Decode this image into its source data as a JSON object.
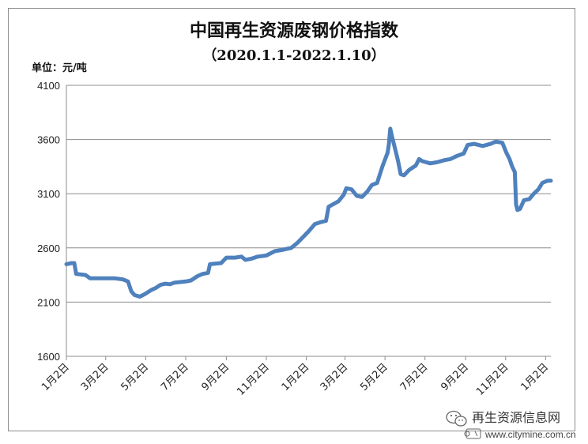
{
  "chart_data": {
    "type": "line",
    "title": "中国再生资源废钢价格指数",
    "subtitle": "（2020.1.1-2022.1.10）",
    "unit_label": "单位：元/吨",
    "xlabel": "",
    "ylabel": "",
    "ylim": [
      1600,
      4100
    ],
    "yticks": [
      1600,
      2100,
      2600,
      3100,
      3600,
      4100
    ],
    "xlim": [
      "2020-01-02",
      "2022-01-10"
    ],
    "xticks": [
      {
        "date": "2020-01-02",
        "label": "1月2日"
      },
      {
        "date": "2020-03-02",
        "label": "3月2日"
      },
      {
        "date": "2020-05-02",
        "label": "5月2日"
      },
      {
        "date": "2020-07-02",
        "label": "7月2日"
      },
      {
        "date": "2020-09-02",
        "label": "9月2日"
      },
      {
        "date": "2020-11-02",
        "label": "11月2日"
      },
      {
        "date": "2021-01-02",
        "label": "1月2日"
      },
      {
        "date": "2021-03-02",
        "label": "3月2日"
      },
      {
        "date": "2021-05-02",
        "label": "5月2日"
      },
      {
        "date": "2021-07-02",
        "label": "7月2日"
      },
      {
        "date": "2021-09-02",
        "label": "9月2日"
      },
      {
        "date": "2021-11-02",
        "label": "11月2日"
      },
      {
        "date": "2022-01-02",
        "label": "1月2日"
      }
    ],
    "grid": true,
    "legend": "none",
    "series": [
      {
        "color": "#4f81bd",
        "points": [
          [
            "2020-01-02",
            2450
          ],
          [
            "2020-01-10",
            2460
          ],
          [
            "2020-01-14",
            2460
          ],
          [
            "2020-01-17",
            2360
          ],
          [
            "2020-01-31",
            2350
          ],
          [
            "2020-02-07",
            2320
          ],
          [
            "2020-03-15",
            2320
          ],
          [
            "2020-03-28",
            2310
          ],
          [
            "2020-04-05",
            2290
          ],
          [
            "2020-04-10",
            2200
          ],
          [
            "2020-04-15",
            2165
          ],
          [
            "2020-04-23",
            2150
          ],
          [
            "2020-05-01",
            2175
          ],
          [
            "2020-05-10",
            2210
          ],
          [
            "2020-05-17",
            2230
          ],
          [
            "2020-05-25",
            2260
          ],
          [
            "2020-06-01",
            2270
          ],
          [
            "2020-06-08",
            2265
          ],
          [
            "2020-06-15",
            2280
          ],
          [
            "2020-07-02",
            2290
          ],
          [
            "2020-07-10",
            2300
          ],
          [
            "2020-07-20",
            2340
          ],
          [
            "2020-07-28",
            2360
          ],
          [
            "2020-08-05",
            2370
          ],
          [
            "2020-08-08",
            2450
          ],
          [
            "2020-08-25",
            2460
          ],
          [
            "2020-09-02",
            2510
          ],
          [
            "2020-09-15",
            2510
          ],
          [
            "2020-09-25",
            2520
          ],
          [
            "2020-10-01",
            2490
          ],
          [
            "2020-10-10",
            2500
          ],
          [
            "2020-10-20",
            2520
          ],
          [
            "2020-11-02",
            2530
          ],
          [
            "2020-11-15",
            2570
          ],
          [
            "2020-11-25",
            2580
          ],
          [
            "2020-12-10",
            2600
          ],
          [
            "2020-12-20",
            2650
          ],
          [
            "2020-12-28",
            2700
          ],
          [
            "2021-01-05",
            2750
          ],
          [
            "2021-01-15",
            2820
          ],
          [
            "2021-01-25",
            2840
          ],
          [
            "2021-02-01",
            2850
          ],
          [
            "2021-02-05",
            2980
          ],
          [
            "2021-02-20",
            3030
          ],
          [
            "2021-02-28",
            3090
          ],
          [
            "2021-03-04",
            3150
          ],
          [
            "2021-03-12",
            3140
          ],
          [
            "2021-03-20",
            3080
          ],
          [
            "2021-03-28",
            3070
          ],
          [
            "2021-04-05",
            3120
          ],
          [
            "2021-04-12",
            3180
          ],
          [
            "2021-04-20",
            3200
          ],
          [
            "2021-04-28",
            3350
          ],
          [
            "2021-05-06",
            3480
          ],
          [
            "2021-05-08",
            3560
          ],
          [
            "2021-05-10",
            3700
          ],
          [
            "2021-05-13",
            3620
          ],
          [
            "2021-05-18",
            3500
          ],
          [
            "2021-05-22",
            3400
          ],
          [
            "2021-05-26",
            3280
          ],
          [
            "2021-05-31",
            3270
          ],
          [
            "2021-06-08",
            3320
          ],
          [
            "2021-06-18",
            3360
          ],
          [
            "2021-06-23",
            3420
          ],
          [
            "2021-06-28",
            3400
          ],
          [
            "2021-07-10",
            3380
          ],
          [
            "2021-07-20",
            3390
          ],
          [
            "2021-08-01",
            3410
          ],
          [
            "2021-08-10",
            3420
          ],
          [
            "2021-08-20",
            3450
          ],
          [
            "2021-08-30",
            3470
          ],
          [
            "2021-09-05",
            3550
          ],
          [
            "2021-09-15",
            3560
          ],
          [
            "2021-09-28",
            3540
          ],
          [
            "2021-10-10",
            3560
          ],
          [
            "2021-10-18",
            3580
          ],
          [
            "2021-10-28",
            3570
          ],
          [
            "2021-11-03",
            3480
          ],
          [
            "2021-11-08",
            3420
          ],
          [
            "2021-11-12",
            3350
          ],
          [
            "2021-11-16",
            3300
          ],
          [
            "2021-11-18",
            3000
          ],
          [
            "2021-11-20",
            2950
          ],
          [
            "2021-11-24",
            2960
          ],
          [
            "2021-11-30",
            3040
          ],
          [
            "2021-12-08",
            3050
          ],
          [
            "2021-12-15",
            3100
          ],
          [
            "2021-12-22",
            3140
          ],
          [
            "2021-12-28",
            3200
          ],
          [
            "2022-01-05",
            3220
          ],
          [
            "2022-01-10",
            3220
          ]
        ]
      }
    ]
  },
  "watermark": {
    "text": "再生资源信息网",
    "url": "www.citymine.com.cn"
  },
  "colors": {
    "line": "#4f81bd",
    "grid": "#8c8c8c",
    "frame": "#8c8c8c"
  }
}
